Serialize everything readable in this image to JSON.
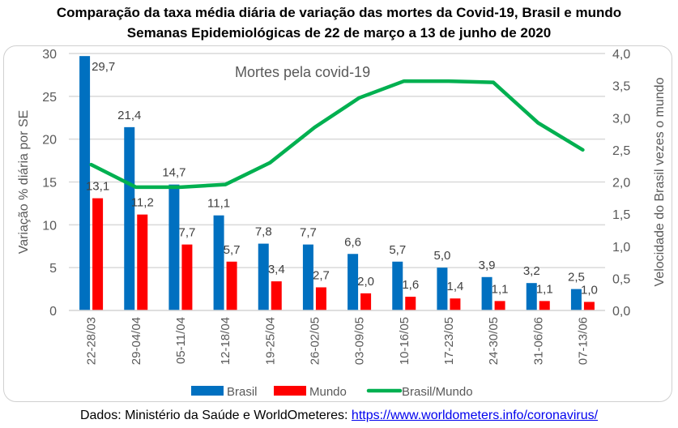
{
  "title_line1": "Comparação da taxa média diária de variação das mortes da Covid-19, Brasil e mundo",
  "title_line2": "Semanas Epidemiológicas de 22 de março a 13 de junho de 2020",
  "source_prefix": "Dados: Ministério da Saúde e WorldOmeteres: ",
  "source_link": "https://www.worldometers.info/coronavirus/",
  "chart_data": {
    "type": "bar",
    "title": "Comparação da taxa média diária de variação das mortes da Covid-19, Brasil e mundo",
    "subtitle": "Semanas Epidemiológicas de 22 de março a 13 de junho de 2020",
    "annotation": "Mortes pela covid-19",
    "categories": [
      "22-28/03",
      "29-04/04",
      "05-11/04",
      "12-18/04",
      "19-25/04",
      "26-02/05",
      "03-09/05",
      "10-16/05",
      "17-23/05",
      "24-30/05",
      "31-06/06",
      "07-13/06"
    ],
    "series": [
      {
        "name": "Brasil",
        "type": "bar",
        "axis": "left",
        "color": "#0070C0",
        "values": [
          29.7,
          21.4,
          14.7,
          11.1,
          7.8,
          7.7,
          6.6,
          5.7,
          5.0,
          3.9,
          3.2,
          2.5
        ],
        "labels": [
          "29,7",
          "21,4",
          "14,7",
          "11,1",
          "7,8",
          "7,7",
          "6,6",
          "5,7",
          "5,0",
          "3,9",
          "3,2",
          "2,5"
        ]
      },
      {
        "name": "Mundo",
        "type": "bar",
        "axis": "left",
        "color": "#FF0000",
        "values": [
          13.1,
          11.2,
          7.7,
          5.7,
          3.4,
          2.7,
          2.0,
          1.6,
          1.4,
          1.1,
          1.1,
          1.0
        ],
        "labels": [
          "13,1",
          "11,2",
          "7,7",
          "5,7",
          "3,4",
          "2,7",
          "2,0",
          "1,6",
          "1,4",
          "1,1",
          "1,1",
          "1,0"
        ]
      },
      {
        "name": "Brasil/Mundo",
        "type": "line",
        "axis": "right",
        "color": "#00B050",
        "values": [
          2.27,
          1.92,
          1.92,
          1.96,
          2.3,
          2.85,
          3.31,
          3.57,
          3.57,
          3.55,
          2.92,
          2.5
        ]
      }
    ],
    "ylabel": "Variação % diária por SE",
    "ylim": [
      0,
      30
    ],
    "yticks": [
      "0",
      "5",
      "10",
      "15",
      "20",
      "25",
      "30"
    ],
    "y2label": "Velocidade do Brasil vezes o mundo",
    "y2lim": [
      0,
      4
    ],
    "y2ticks": [
      "0,0",
      "0,5",
      "1,0",
      "1,5",
      "2,0",
      "2,5",
      "3,0",
      "3,5",
      "4,0"
    ],
    "grid": true,
    "legend": "bottom"
  }
}
